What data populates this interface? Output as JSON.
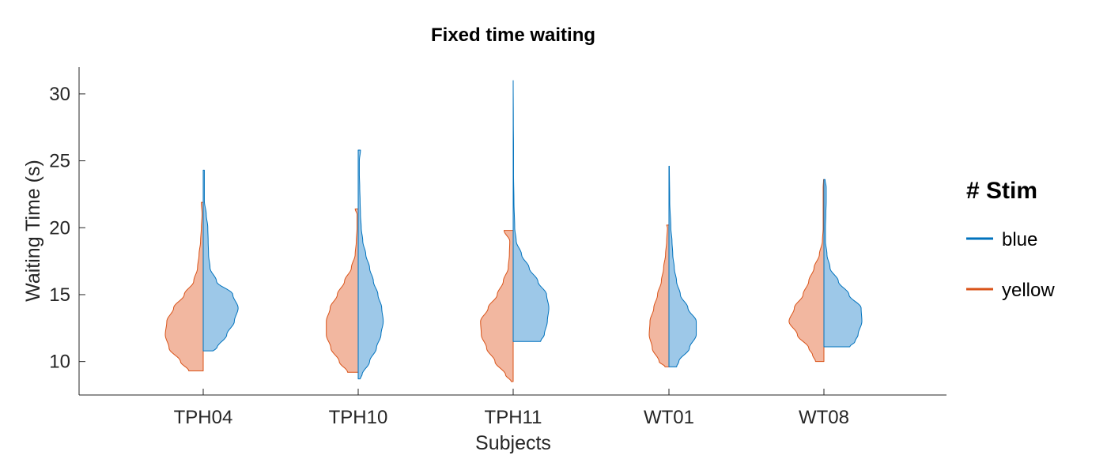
{
  "chart_data": {
    "type": "violin",
    "title": "Fixed time waiting",
    "xlabel": "Subjects",
    "ylabel": "Waiting Time (s)",
    "ylim": [
      7.5,
      32
    ],
    "yticks": [
      10,
      15,
      20,
      25,
      30
    ],
    "grid": false,
    "legend_placement": "right",
    "categories": [
      "TPH04",
      "TPH10",
      "TPH11",
      "WT01",
      "WT08"
    ],
    "legend": {
      "title": "# Stim",
      "entries": [
        {
          "label": "blue",
          "color": "#0072BD"
        },
        {
          "label": "yellow",
          "color": "#D95319"
        }
      ]
    },
    "series": [
      {
        "color": "#0072BD",
        "fill": "#9DC8E8",
        "side": "right",
        "distributions": [
          {
            "min": 10.8,
            "max": 24.3,
            "profile": [
              [
                10.8,
                0.26
              ],
              [
                11.0,
                0.36
              ],
              [
                12.0,
                0.62
              ],
              [
                13.0,
                0.82
              ],
              [
                14.0,
                0.92
              ],
              [
                15.0,
                0.78
              ],
              [
                16.0,
                0.35
              ],
              [
                17.0,
                0.18
              ],
              [
                18.0,
                0.14
              ],
              [
                19.0,
                0.13
              ],
              [
                20.0,
                0.12
              ],
              [
                21.0,
                0.08
              ],
              [
                22.0,
                0.03
              ],
              [
                23.0,
                0.03
              ],
              [
                24.3,
                0.03
              ]
            ]
          },
          {
            "min": 8.7,
            "max": 25.8,
            "profile": [
              [
                8.7,
                0.05
              ],
              [
                9.0,
                0.1
              ],
              [
                10.0,
                0.3
              ],
              [
                11.0,
                0.48
              ],
              [
                12.0,
                0.6
              ],
              [
                13.0,
                0.66
              ],
              [
                14.0,
                0.62
              ],
              [
                15.0,
                0.52
              ],
              [
                16.0,
                0.4
              ],
              [
                17.0,
                0.3
              ],
              [
                18.0,
                0.2
              ],
              [
                19.0,
                0.12
              ],
              [
                20.0,
                0.08
              ],
              [
                21.0,
                0.06
              ],
              [
                22.0,
                0.05
              ],
              [
                23.0,
                0.04
              ],
              [
                24.0,
                0.03
              ],
              [
                25.0,
                0.03
              ],
              [
                25.8,
                0.06
              ]
            ]
          },
          {
            "min": 11.5,
            "max": 31.0,
            "profile": [
              [
                11.5,
                0.72
              ],
              [
                12.0,
                0.82
              ],
              [
                13.0,
                0.9
              ],
              [
                14.0,
                0.94
              ],
              [
                15.0,
                0.88
              ],
              [
                16.0,
                0.65
              ],
              [
                17.0,
                0.42
              ],
              [
                18.0,
                0.22
              ],
              [
                19.0,
                0.08
              ],
              [
                20.0,
                0.04
              ],
              [
                22.0,
                0.02
              ],
              [
                24.0,
                0.01
              ],
              [
                26.0,
                0.01
              ],
              [
                28.0,
                0.005
              ],
              [
                31.0,
                0.0
              ]
            ]
          },
          {
            "min": 9.6,
            "max": 24.6,
            "profile": [
              [
                9.6,
                0.2
              ],
              [
                10.0,
                0.26
              ],
              [
                11.0,
                0.54
              ],
              [
                12.0,
                0.72
              ],
              [
                13.0,
                0.72
              ],
              [
                14.0,
                0.5
              ],
              [
                15.0,
                0.3
              ],
              [
                16.0,
                0.2
              ],
              [
                17.0,
                0.14
              ],
              [
                18.0,
                0.1
              ],
              [
                19.0,
                0.08
              ],
              [
                20.0,
                0.05
              ],
              [
                22.0,
                0.02
              ],
              [
                24.6,
                0.01
              ]
            ]
          },
          {
            "min": 11.1,
            "max": 23.6,
            "profile": [
              [
                11.1,
                0.68
              ],
              [
                11.5,
                0.82
              ],
              [
                12.0,
                0.9
              ],
              [
                13.0,
                1.0
              ],
              [
                14.0,
                0.98
              ],
              [
                15.0,
                0.66
              ],
              [
                16.0,
                0.38
              ],
              [
                17.0,
                0.16
              ],
              [
                18.0,
                0.08
              ],
              [
                19.0,
                0.04
              ],
              [
                20.0,
                0.04
              ],
              [
                21.0,
                0.05
              ],
              [
                22.0,
                0.06
              ],
              [
                23.0,
                0.06
              ],
              [
                23.6,
                0.03
              ]
            ]
          }
        ]
      },
      {
        "color": "#D95319",
        "fill": "#F2B7A0",
        "side": "left",
        "distributions": [
          {
            "min": 9.3,
            "max": 21.9,
            "profile": [
              [
                9.3,
                0.38
              ],
              [
                10.0,
                0.6
              ],
              [
                11.0,
                0.9
              ],
              [
                12.0,
                1.0
              ],
              [
                13.0,
                0.96
              ],
              [
                14.0,
                0.78
              ],
              [
                15.0,
                0.5
              ],
              [
                16.0,
                0.25
              ],
              [
                17.0,
                0.15
              ],
              [
                18.0,
                0.11
              ],
              [
                19.0,
                0.07
              ],
              [
                20.0,
                0.05
              ],
              [
                21.0,
                0.03
              ],
              [
                21.9,
                0.05
              ]
            ]
          },
          {
            "min": 9.2,
            "max": 21.4,
            "profile": [
              [
                9.2,
                0.28
              ],
              [
                10.0,
                0.5
              ],
              [
                11.0,
                0.72
              ],
              [
                12.0,
                0.84
              ],
              [
                13.0,
                0.84
              ],
              [
                14.0,
                0.74
              ],
              [
                15.0,
                0.55
              ],
              [
                16.0,
                0.36
              ],
              [
                17.0,
                0.18
              ],
              [
                18.0,
                0.08
              ],
              [
                19.0,
                0.05
              ],
              [
                20.0,
                0.03
              ],
              [
                21.0,
                0.03
              ],
              [
                21.4,
                0.08
              ]
            ]
          },
          {
            "min": 8.5,
            "max": 19.8,
            "profile": [
              [
                8.5,
                0.05
              ],
              [
                9.0,
                0.2
              ],
              [
                10.0,
                0.48
              ],
              [
                11.0,
                0.7
              ],
              [
                12.0,
                0.84
              ],
              [
                13.0,
                0.86
              ],
              [
                14.0,
                0.66
              ],
              [
                15.0,
                0.42
              ],
              [
                16.0,
                0.26
              ],
              [
                17.0,
                0.13
              ],
              [
                18.0,
                0.1
              ],
              [
                19.0,
                0.09
              ],
              [
                19.8,
                0.24
              ]
            ]
          },
          {
            "min": 9.6,
            "max": 20.2,
            "profile": [
              [
                9.6,
                0.1
              ],
              [
                10.0,
                0.26
              ],
              [
                11.0,
                0.44
              ],
              [
                12.0,
                0.52
              ],
              [
                13.0,
                0.5
              ],
              [
                14.0,
                0.4
              ],
              [
                15.0,
                0.3
              ],
              [
                16.0,
                0.2
              ],
              [
                17.0,
                0.14
              ],
              [
                18.0,
                0.09
              ],
              [
                19.0,
                0.06
              ],
              [
                20.0,
                0.04
              ],
              [
                20.2,
                0.06
              ]
            ]
          },
          {
            "min": 10.0,
            "max": 23.6,
            "profile": [
              [
                10.0,
                0.22
              ],
              [
                10.5,
                0.3
              ],
              [
                11.0,
                0.4
              ],
              [
                12.0,
                0.7
              ],
              [
                13.0,
                0.92
              ],
              [
                14.0,
                0.78
              ],
              [
                15.0,
                0.55
              ],
              [
                16.0,
                0.4
              ],
              [
                17.0,
                0.26
              ],
              [
                18.0,
                0.12
              ],
              [
                19.0,
                0.04
              ],
              [
                20.0,
                0.02
              ],
              [
                21.0,
                0.02
              ],
              [
                22.0,
                0.02
              ],
              [
                23.0,
                0.02
              ],
              [
                23.6,
                0.01
              ]
            ]
          }
        ]
      }
    ]
  }
}
